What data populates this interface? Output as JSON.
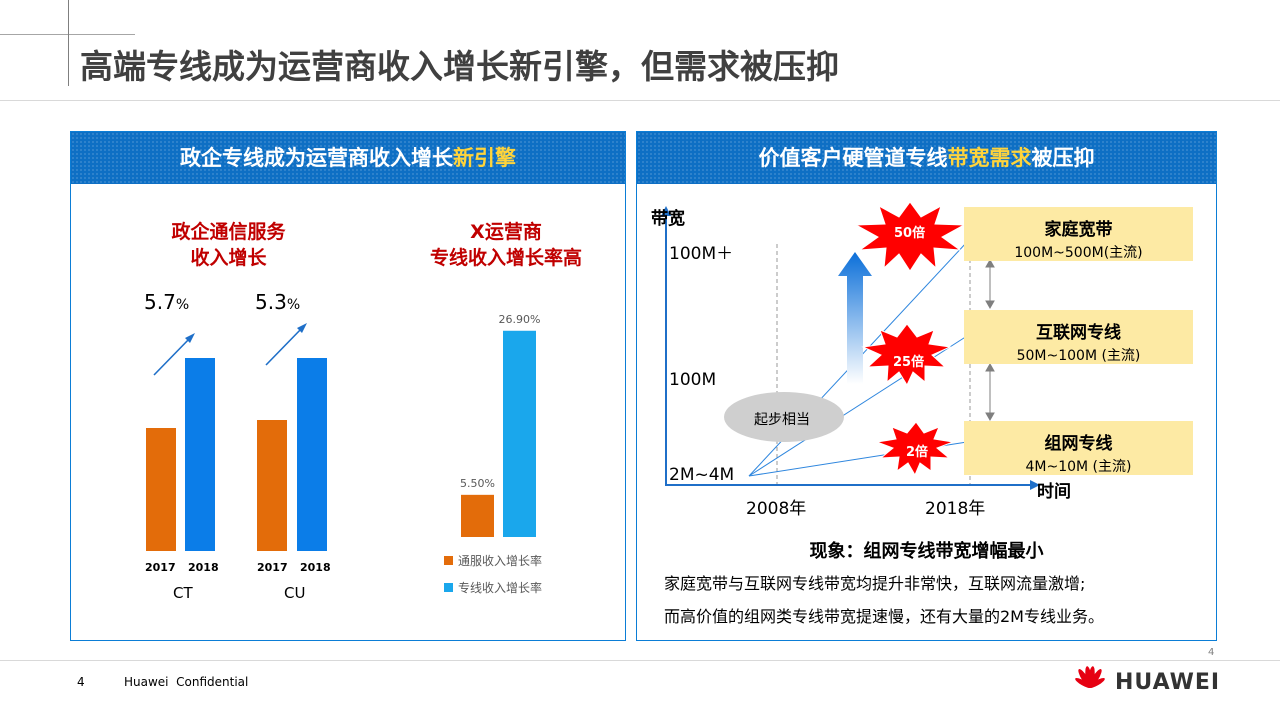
{
  "page": {
    "title": "高端专线成为运营商收入增长新引擎，但需求被压抑",
    "page_number": "4",
    "corner_page_number": "4",
    "confidential": "Huawei  Confidential",
    "brand": "HUAWEI"
  },
  "left_panel": {
    "header_prefix": "政企专线成为运营商收入增长",
    "header_highlight": "新引擎",
    "chart1": {
      "title_line1": "政企通信服务",
      "title_line2": "收入增长",
      "groups": [
        {
          "name": "CT",
          "growth": "5.7",
          "growth_unit": "%"
        },
        {
          "name": "CU",
          "growth": "5.3",
          "growth_unit": "%"
        }
      ],
      "year1": "2017",
      "year2": "2018"
    },
    "chart2": {
      "title_line1": "X运营商",
      "title_line2": "专线收入增长率高",
      "legend1": "通服收入增长率",
      "legend2": "专线收入增长率"
    }
  },
  "right_panel": {
    "header_prefix": "价值客户硬管道专线",
    "header_highlight": "带宽需求",
    "header_suffix": "被压抑",
    "diagram": {
      "y_axis_label": "带宽",
      "x_axis_label": "时间",
      "y_ticks": [
        "100M＋",
        "100M",
        "2M~4M"
      ],
      "x_ticks": [
        "2008年",
        "2018年"
      ],
      "start_bubble": "起步相当",
      "bursts": [
        "50倍",
        "25倍",
        "2倍"
      ],
      "boxes": [
        {
          "title": "家庭宽带",
          "detail": "100M~500M(主流)"
        },
        {
          "title": "互联网专线",
          "detail": "50M~100M (主流)"
        },
        {
          "title": "组网专线",
          "detail": "4M~10M (主流)"
        }
      ]
    },
    "phenomenon": "现象：组网专线带宽增幅最小",
    "desc_line1": "家庭宽带与互联网专线带宽均提升非常快，互联网流量激增;",
    "desc_line2": "而高价值的组网类专线带宽提速慢，还有大量的2M专线业务。"
  },
  "colors": {
    "orange": "#e36c0a",
    "blue": "#0b7de8",
    "light_blue": "#1aa7ec",
    "panel_header": "#0e6fc4",
    "highlight_yellow": "#ffd43b",
    "red_title": "#c00000",
    "burst_red": "#ff0000",
    "box_yellow": "#fdeaa4"
  },
  "chart_data": [
    {
      "type": "bar",
      "title": "政企通信服务 收入增长",
      "groups": [
        "CT",
        "CU"
      ],
      "categories": [
        "2017",
        "2018"
      ],
      "series": [
        {
          "name": "CT",
          "values": [
            55,
            85
          ]
        },
        {
          "name": "CU",
          "values": [
            57,
            85
          ]
        }
      ],
      "annotations": [
        "5.7%",
        "5.3%"
      ]
    },
    {
      "type": "bar",
      "title": "X运营商 专线收入增长率高",
      "series": [
        {
          "name": "通服收入增长率",
          "values": [
            5.5
          ]
        },
        {
          "name": "专线收入增长率",
          "values": [
            26.9
          ]
        }
      ],
      "data_labels": [
        "5.50%",
        "26.90%"
      ],
      "ylim": [
        0,
        30
      ]
    }
  ]
}
